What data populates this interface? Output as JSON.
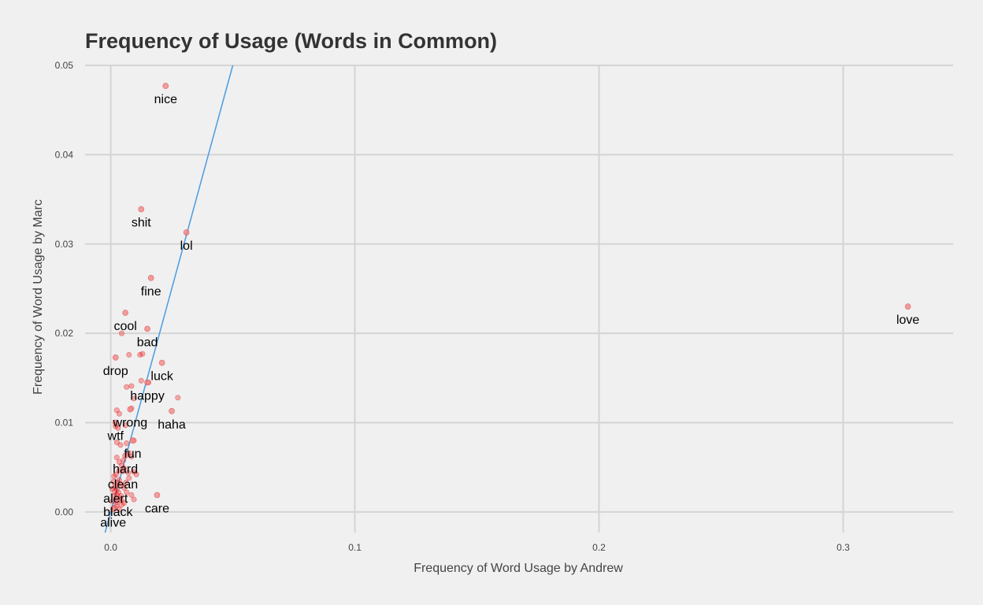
{
  "chart_data": {
    "type": "scatter",
    "title": "Frequency of Usage (Words in Common)",
    "xlabel": "Frequency of Word Usage by Andrew",
    "ylabel": "Frequency of Word Usage by Marc",
    "xlim": [
      -0.0105,
      0.345
    ],
    "ylim": [
      -0.0023,
      0.05
    ],
    "x_ticks": [
      0.0,
      0.1,
      0.2,
      0.3
    ],
    "x_tick_labels": [
      "0.0",
      "0.1",
      "0.2",
      "0.3"
    ],
    "y_ticks": [
      0.0,
      0.01,
      0.02,
      0.03,
      0.04,
      0.05
    ],
    "y_tick_labels": [
      "0.00",
      "0.01",
      "0.02",
      "0.03",
      "0.04",
      "0.05"
    ],
    "grid": true,
    "point_color": "#f08080",
    "line_color": "#4a9be0",
    "reference_line": {
      "slope": 1,
      "intercept": 0
    },
    "labeled_points": [
      {
        "word": "nice",
        "x": 0.0225,
        "y": 0.0477
      },
      {
        "word": "shit",
        "x": 0.0125,
        "y": 0.0339
      },
      {
        "word": "lol",
        "x": 0.031,
        "y": 0.0313
      },
      {
        "word": "fine",
        "x": 0.0165,
        "y": 0.0262
      },
      {
        "word": "love",
        "x": 0.3265,
        "y": 0.023
      },
      {
        "word": "cool",
        "x": 0.006,
        "y": 0.0223
      },
      {
        "word": "bad",
        "x": 0.015,
        "y": 0.0205
      },
      {
        "word": "drop",
        "x": 0.002,
        "y": 0.0173
      },
      {
        "word": "luck",
        "x": 0.021,
        "y": 0.0167
      },
      {
        "word": "happy",
        "x": 0.015,
        "y": 0.0145
      },
      {
        "word": "wrong",
        "x": 0.008,
        "y": 0.0115
      },
      {
        "word": "haha",
        "x": 0.025,
        "y": 0.0113
      },
      {
        "word": "fun",
        "x": 0.009,
        "y": 0.008
      },
      {
        "word": "wtf",
        "x": 0.002,
        "y": 0.01
      },
      {
        "word": "hard",
        "x": 0.006,
        "y": 0.0063
      },
      {
        "word": "clean",
        "x": 0.005,
        "y": 0.0046
      },
      {
        "word": "alert",
        "x": 0.002,
        "y": 0.003
      },
      {
        "word": "black",
        "x": 0.003,
        "y": 0.0015
      },
      {
        "word": "alive",
        "x": 0.001,
        "y": 0.0003
      },
      {
        "word": "care",
        "x": 0.019,
        "y": 0.0019
      }
    ],
    "unlabeled_points": [
      [
        0.0155,
        0.0145
      ],
      [
        0.0275,
        0.0128
      ],
      [
        0.013,
        0.0177
      ],
      [
        0.012,
        0.0176
      ],
      [
        0.0045,
        0.02
      ],
      [
        0.0075,
        0.0176
      ],
      [
        0.0065,
        0.014
      ],
      [
        0.0085,
        0.0141
      ],
      [
        0.0125,
        0.0147
      ],
      [
        0.0095,
        0.0127
      ],
      [
        0.0085,
        0.0116
      ],
      [
        0.0035,
        0.011
      ],
      [
        0.0025,
        0.0114
      ],
      [
        0.002,
        0.0096
      ],
      [
        0.003,
        0.0094
      ],
      [
        0.006,
        0.0097
      ],
      [
        0.0095,
        0.008
      ],
      [
        0.0025,
        0.0078
      ],
      [
        0.004,
        0.0075
      ],
      [
        0.0065,
        0.0077
      ],
      [
        0.0075,
        0.0066
      ],
      [
        0.0085,
        0.0062
      ],
      [
        0.0025,
        0.0061
      ],
      [
        0.0035,
        0.0056
      ],
      [
        0.0045,
        0.0052
      ],
      [
        0.0055,
        0.0049
      ],
      [
        0.0095,
        0.0045
      ],
      [
        0.0105,
        0.0042
      ],
      [
        0.0075,
        0.0038
      ],
      [
        0.0035,
        0.0036
      ],
      [
        0.0045,
        0.003
      ],
      [
        0.0055,
        0.0027
      ],
      [
        0.0025,
        0.0025
      ],
      [
        0.0065,
        0.0022
      ],
      [
        0.0085,
        0.0019
      ],
      [
        0.0015,
        0.0018
      ],
      [
        0.0035,
        0.0015
      ],
      [
        0.0095,
        0.0014
      ],
      [
        0.0025,
        0.0011
      ],
      [
        0.0045,
        0.0008
      ],
      [
        0.0015,
        0.0005
      ],
      [
        0.0035,
        0.0003
      ],
      [
        0.0055,
        0.001
      ],
      [
        0.0012,
        0.0034
      ],
      [
        0.0022,
        0.0042
      ],
      [
        0.0032,
        0.0022
      ],
      [
        0.0042,
        0.0018
      ],
      [
        0.0018,
        0.0028
      ],
      [
        0.0028,
        0.0033
      ],
      [
        0.0008,
        0.0012
      ],
      [
        0.0062,
        0.0033
      ],
      [
        0.0072,
        0.0044
      ],
      [
        0.0052,
        0.0058
      ],
      [
        0.0014,
        0.004
      ],
      [
        0.0024,
        0.0007
      ],
      [
        0.0034,
        0.0046
      ],
      [
        0.0044,
        0.0013
      ],
      [
        0.0016,
        0.0023
      ],
      [
        0.0026,
        0.0019
      ],
      [
        0.0006,
        0.0026
      ]
    ]
  }
}
